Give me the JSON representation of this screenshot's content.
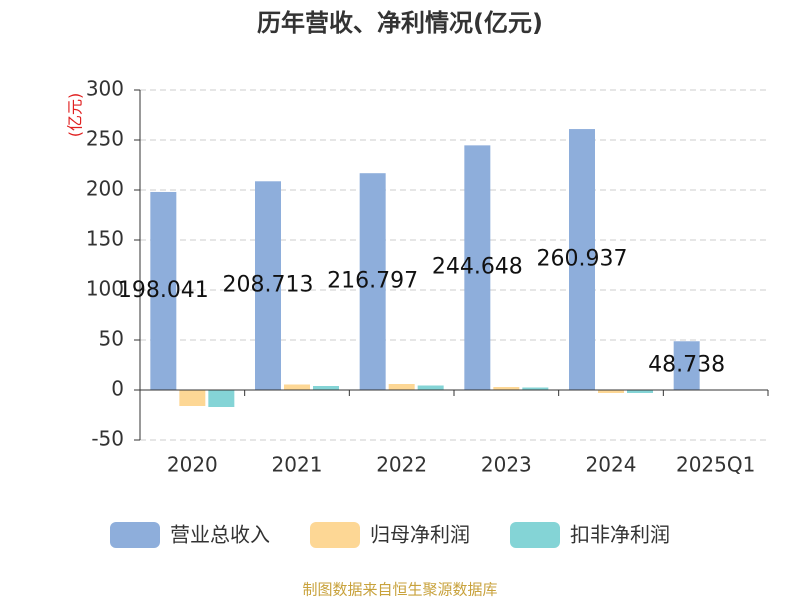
{
  "chart_data": {
    "type": "bar",
    "title": "历年营收、净利情况(亿元)",
    "y_label": "(亿元)",
    "source": "制图数据来自恒生聚源数据库",
    "categories": [
      "2020",
      "2021",
      "2022",
      "2023",
      "2024",
      "2025Q1"
    ],
    "series": [
      {
        "name": "营业总收入",
        "color": "#8eaedb",
        "values": [
          198.041,
          208.713,
          216.797,
          244.648,
          260.937,
          48.738
        ],
        "value_labels": [
          "198.041",
          "208.713",
          "216.797",
          "244.648",
          "260.937",
          "48.738"
        ]
      },
      {
        "name": "归母净利润",
        "color": "#fdd795",
        "values": [
          -16,
          5.5,
          6,
          3,
          -3,
          null
        ]
      },
      {
        "name": "扣非净利润",
        "color": "#84d4d6",
        "values": [
          -17,
          4,
          4.5,
          2.5,
          -3,
          null
        ]
      }
    ],
    "ylim": [
      -50,
      300
    ],
    "yticks": [
      -50,
      0,
      50,
      100,
      150,
      200,
      250,
      300
    ],
    "grid": true
  }
}
